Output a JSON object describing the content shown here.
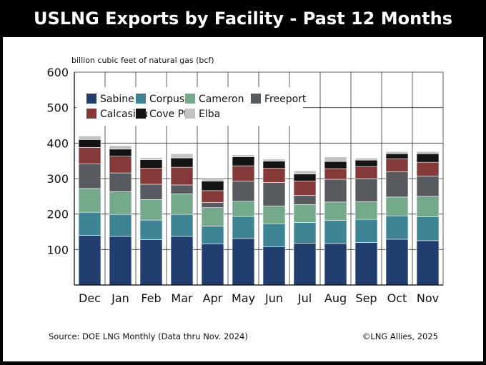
{
  "title": "USLNG Exports by Facility - Past 12 Months",
  "footer": {
    "source": "Source: DOE LNG Monthly (Data thru Nov. 2024)",
    "copyright": "©LNG Allies, 2025"
  },
  "colors": {
    "Sabine": "#213e6e",
    "Corpus": "#3f8495",
    "Cameron": "#74a98c",
    "Freeport": "#575b60",
    "Calcasieu": "#853a3a",
    "Cove Pt.": "#141414",
    "Elba": "#c3c3c3"
  },
  "chart_data": {
    "type": "bar",
    "stacked": true,
    "ylabel": "billion cubic feet of natural gas (bcf)",
    "ylim": [
      0,
      600
    ],
    "yticks": [
      100,
      200,
      300,
      400,
      500,
      600
    ],
    "grid": true,
    "legend_position": "top-left",
    "categories": [
      "Dec",
      "Jan",
      "Feb",
      "Mar",
      "Apr",
      "May",
      "Jun",
      "Jul",
      "Aug",
      "Sep",
      "Oct",
      "Nov"
    ],
    "series": [
      {
        "name": "Sabine",
        "values": [
          140,
          137,
          128,
          137,
          116,
          131,
          108,
          118,
          117,
          120,
          129,
          125
        ]
      },
      {
        "name": "Corpus",
        "values": [
          65,
          62,
          55,
          62,
          50,
          62,
          65,
          58,
          65,
          65,
          66,
          67
        ]
      },
      {
        "name": "Cameron",
        "values": [
          67,
          64,
          58,
          58,
          52,
          43,
          50,
          51,
          52,
          50,
          53,
          58
        ]
      },
      {
        "name": "Freeport",
        "values": [
          70,
          53,
          43,
          25,
          15,
          57,
          66,
          26,
          64,
          65,
          71,
          57
        ]
      },
      {
        "name": "Calcasieu",
        "values": [
          46,
          47,
          45,
          50,
          33,
          43,
          40,
          40,
          30,
          34,
          37,
          39
        ]
      },
      {
        "name": "Cove Pt.",
        "values": [
          22,
          20,
          24,
          26,
          27,
          25,
          20,
          20,
          20,
          18,
          14,
          24
        ]
      },
      {
        "name": "Elba",
        "values": [
          10,
          10,
          6,
          12,
          6,
          6,
          6,
          9,
          13,
          6,
          6,
          6
        ]
      }
    ]
  }
}
